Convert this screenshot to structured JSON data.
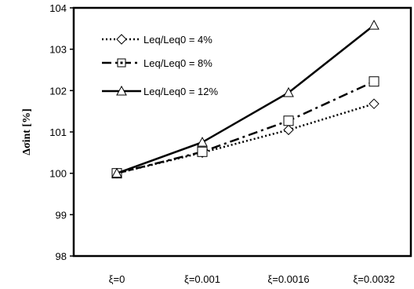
{
  "chart_data": {
    "type": "line",
    "title": "",
    "xlabel": "",
    "ylabel": "Δσint [%]",
    "categories": [
      "ξ=0",
      "ξ=0.001",
      "ξ=0.0016",
      "ξ=0.0032"
    ],
    "ylim": [
      98,
      104
    ],
    "yticks": [
      "98",
      "99",
      "100",
      "101",
      "102",
      "103",
      "104"
    ],
    "grid": false,
    "legend_position": "top-left",
    "series": [
      {
        "name": "Leq/Leq0 = 4%",
        "values": [
          100,
          100.5,
          101.05,
          101.68
        ],
        "line_style": "dotted",
        "marker": "diamond"
      },
      {
        "name": "Leq/Leq0 = 8%",
        "values": [
          100,
          100.52,
          101.27,
          102.22
        ],
        "line_style": "dash-dot",
        "marker": "square"
      },
      {
        "name": "Leq/Leq0 = 12%",
        "values": [
          100,
          100.75,
          101.95,
          103.58
        ],
        "line_style": "solid",
        "marker": "triangle"
      }
    ]
  }
}
